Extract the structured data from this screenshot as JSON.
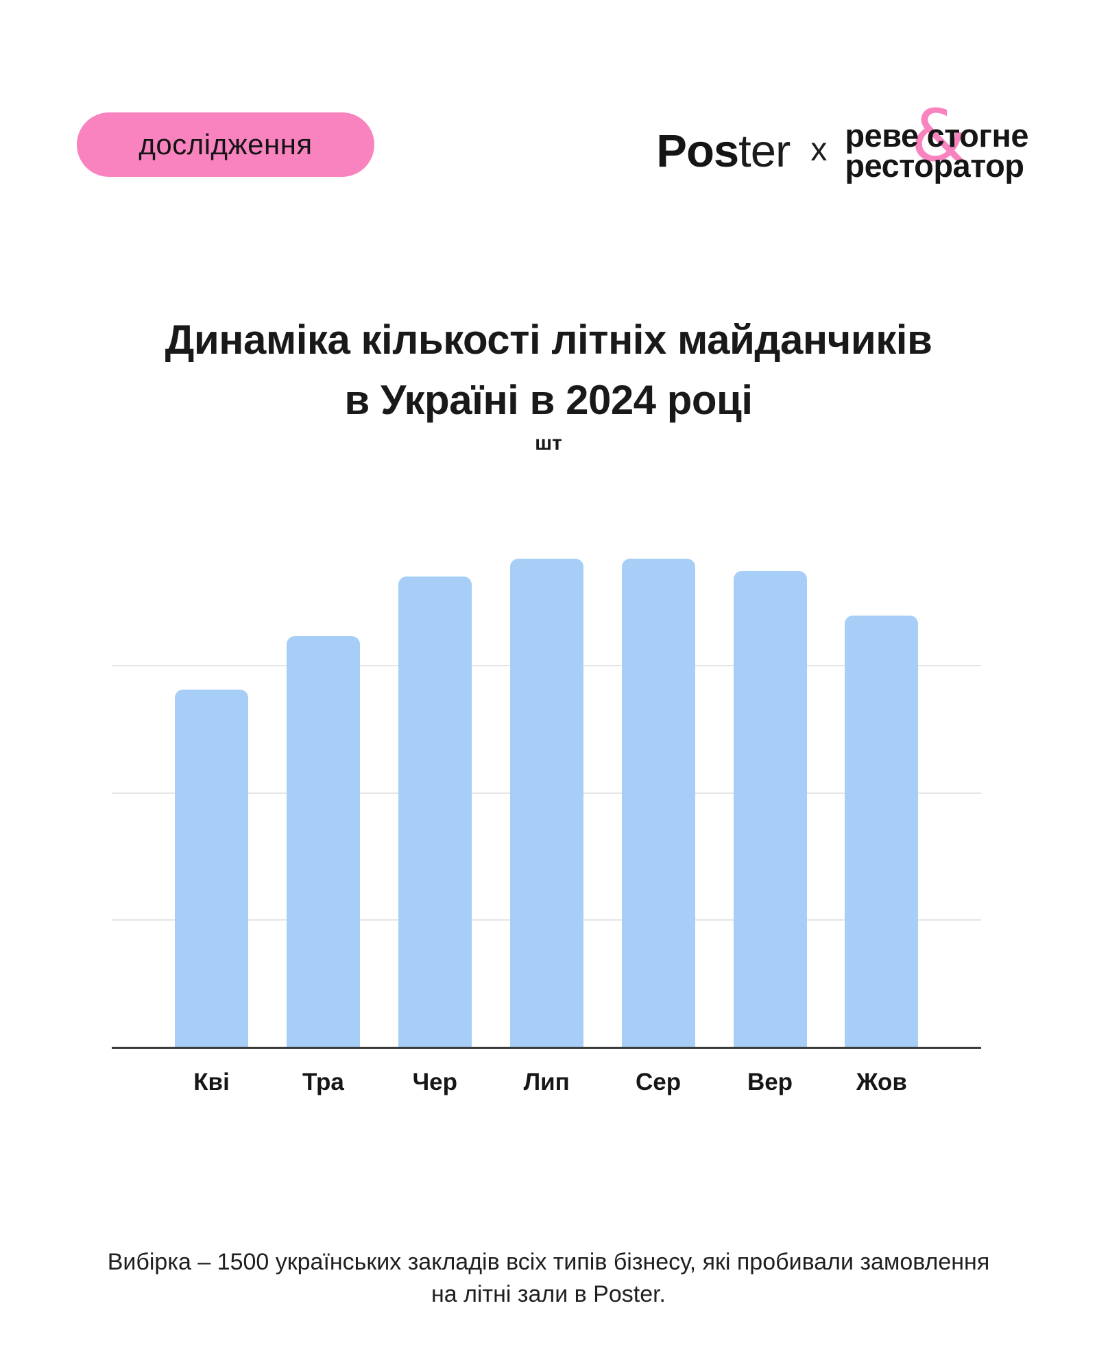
{
  "badge": {
    "label": "дослідження",
    "bg_color": "#F983BF"
  },
  "header": {
    "poster_logo": {
      "bold_part": "Pos",
      "light_part": "ter"
    },
    "separator": "x",
    "partner_logo": {
      "line1_left": "реве",
      "ampersand": "&",
      "line1_right": "стогне",
      "line2": "ресторатор",
      "ampersand_color": "#F983BF"
    }
  },
  "title": {
    "line1": "Динаміка кількості літніх майданчиків",
    "line2": "в Україні в 2024 році"
  },
  "units_label": "шт",
  "chart_data": {
    "type": "bar",
    "title": "Динаміка кількості літніх майданчиків в Україні в 2024 році",
    "ylabel": "шт",
    "categories": [
      "Кві",
      "Тра",
      "Чер",
      "Лип",
      "Сер",
      "Вер",
      "Жов"
    ],
    "values_percent_of_max": [
      73.2,
      84.2,
      96.4,
      100,
      100,
      97.5,
      88.4
    ],
    "values_gridline_units": [
      2.82,
      3.24,
      3.71,
      3.85,
      3.85,
      3.75,
      3.4
    ],
    "y_axis_tick_labels": [],
    "note": "y-axis has no numeric labels; values estimated relative to unlabeled gridlines (1 unit = one gridline interval) and to the tallest bar (Лип/Сер = 100%)",
    "gridline_count": 3,
    "grid_on": true,
    "legend": "none",
    "bar_color": "#A6CEF7",
    "grid_color": "#E5E5E5",
    "axis_color": "#3B3B3B",
    "label_color": "#161616"
  },
  "footnote": {
    "line1": "Вибірка  – 1500 українських закладів всіх типів бізнесу, які пробивали замовлення",
    "line2": "на літні зали в Poster."
  }
}
